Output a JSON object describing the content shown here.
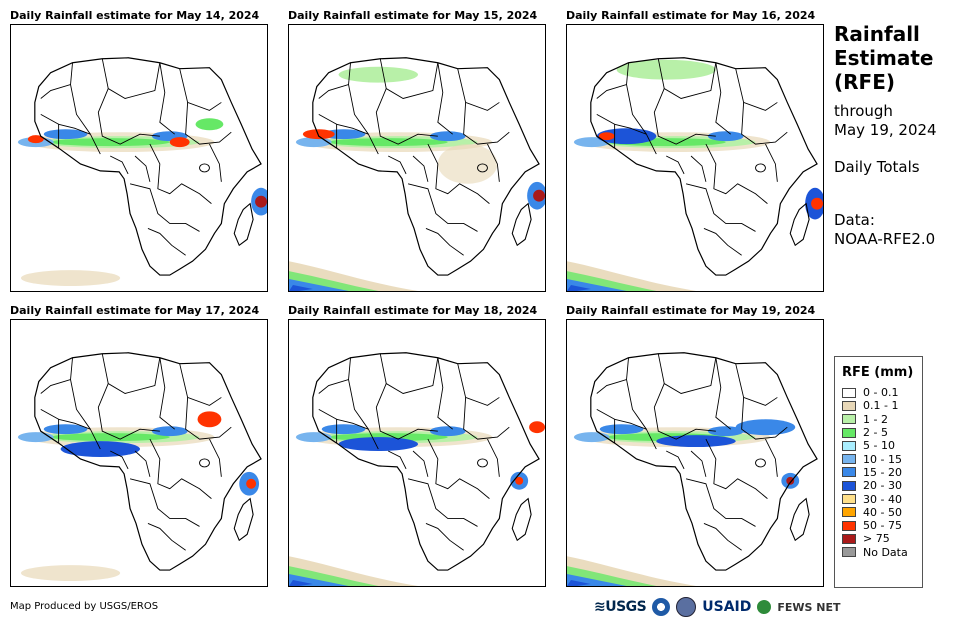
{
  "panels": [
    {
      "title": "Daily Rainfall estimate for May 14, 2024"
    },
    {
      "title": "Daily Rainfall estimate for May 15, 2024"
    },
    {
      "title": "Daily Rainfall estimate for May 16, 2024"
    },
    {
      "title": "Daily Rainfall estimate for May 17, 2024"
    },
    {
      "title": "Daily Rainfall estimate for May 18, 2024"
    },
    {
      "title": "Daily Rainfall estimate for May 19, 2024"
    }
  ],
  "side": {
    "title_line1": "Rainfall",
    "title_line2": "Estimate",
    "title_line3": "(RFE)",
    "through": "through",
    "date": "May 19, 2024",
    "totals": "Daily Totals",
    "data_label": "Data:",
    "data_source": "NOAA-RFE2.0"
  },
  "legend": {
    "title": "RFE (mm)",
    "items": [
      {
        "label": "0 - 0.1",
        "color": "#ffffff"
      },
      {
        "label": "0.1 - 1",
        "color": "#e8d8b8"
      },
      {
        "label": "1 - 2",
        "color": "#b8f0a8"
      },
      {
        "label": "2 - 5",
        "color": "#66e866"
      },
      {
        "label": "5 - 10",
        "color": "#aaeeff"
      },
      {
        "label": "10 - 15",
        "color": "#77b4ee"
      },
      {
        "label": "15 - 20",
        "color": "#3a88e8"
      },
      {
        "label": "20 - 30",
        "color": "#1c54d8"
      },
      {
        "label": "30 - 40",
        "color": "#ffe08a"
      },
      {
        "label": "40 - 50",
        "color": "#ffa500"
      },
      {
        "label": "50 - 75",
        "color": "#ff3300"
      },
      {
        "label": "> 75",
        "color": "#aa1a1a"
      },
      {
        "label": "No Data",
        "color": "#999999"
      }
    ]
  },
  "credit": "Map Produced by USGS/EROS",
  "logos": {
    "usgs": "≋USGS",
    "usaid": "USAID",
    "fewsnet": "FEWS NET"
  }
}
